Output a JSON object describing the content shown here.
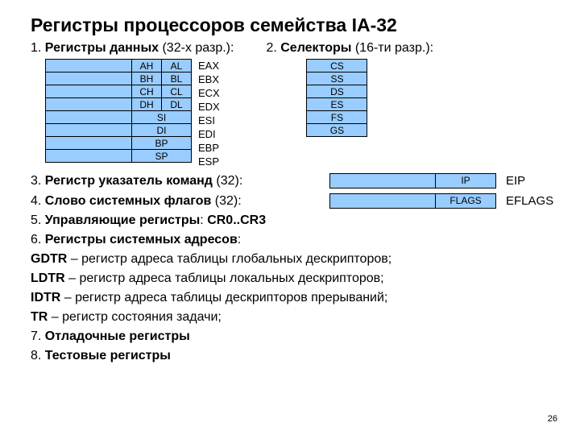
{
  "title": "Регистры процессоров семейства IА-32",
  "sec1": {
    "num": "1. ",
    "emph": "Регистры данных",
    "suffix": " (32-х разр.):"
  },
  "sec2": {
    "num": "2. ",
    "emph": "Селекторы",
    "suffix": " (16-ти разр.):"
  },
  "reg32": {
    "fill": "#99ccff",
    "rows_hl": [
      {
        "h": "AH",
        "l": "AL",
        "ext": "EAX"
      },
      {
        "h": "BH",
        "l": "BL",
        "ext": "EBX"
      },
      {
        "h": "CH",
        "l": "CL",
        "ext": "ECX"
      },
      {
        "h": "DH",
        "l": "DL",
        "ext": "EDX"
      }
    ],
    "rows_full": [
      {
        "n": "SI",
        "ext": "ESI"
      },
      {
        "n": "DI",
        "ext": "EDI"
      },
      {
        "n": "BP",
        "ext": "EBP"
      },
      {
        "n": "SP",
        "ext": "ESP"
      }
    ]
  },
  "selectors": [
    "CS",
    "SS",
    "DS",
    "ES",
    "FS",
    "GS"
  ],
  "sec3": {
    "num": "3. ",
    "emph": "Регистр указатель команд",
    "suffix": " (32):"
  },
  "ip": {
    "short": "IP",
    "ext": "EIP"
  },
  "sec4": {
    "num": "4. ",
    "emph": "Слово системных флагов",
    "suffix": "  (32):"
  },
  "flags": {
    "short": "FLAGS",
    "ext": "EFLAGS"
  },
  "sec5": {
    "num": "5. ",
    "emph": "Управляющие регистры",
    "suffix": ":  ",
    "tail": "CR0..CR3"
  },
  "sec6": {
    "num": "6. ",
    "emph": "Регистры системных адресов",
    "suffix": ":"
  },
  "gdtr": {
    "b": "GDTR",
    "t": " – регистр адреса таблицы глобальных дескрипторов;"
  },
  "ldtr": {
    "b": "LDTR",
    "t": " – регистр адреса таблицы локальных дескрипторов;"
  },
  "idtr": {
    "b": "IDTR",
    "t": " – регистр адреса таблицы дескрипторов прерываний;"
  },
  "tr": {
    "b": "TR",
    "t": " – регистр состояния задачи;"
  },
  "sec7": {
    "num": "7. ",
    "emph": "Отладочные регистры"
  },
  "sec8": {
    "num": "8. ",
    "emph": "Тестовые регистры"
  },
  "pagenum": "26"
}
